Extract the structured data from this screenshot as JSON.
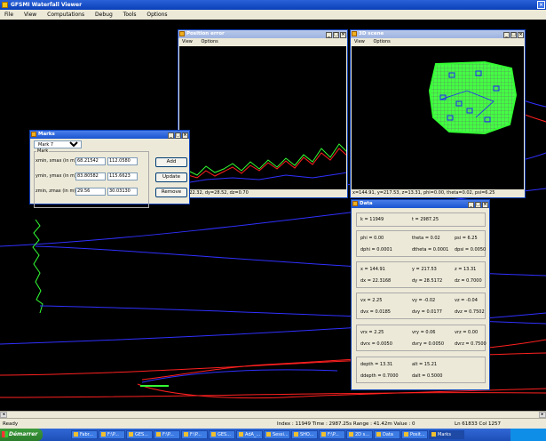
{
  "app": {
    "title": "GFSMI Waterfall Viewer"
  },
  "menu": [
    "File",
    "View",
    "Computations",
    "Debug",
    "Tools",
    "Options"
  ],
  "position_window": {
    "title": "Position error",
    "menu": [
      "View",
      "Options"
    ],
    "status": "dx=22.32, dy=28.52, dz=0.70"
  },
  "scene_window": {
    "title": "3D scene",
    "menu": [
      "View",
      "Options"
    ],
    "status": "x=144.91, y=217.53, z=13.31, phi=0.00, theta=0.02, psi=6.25"
  },
  "marks_window": {
    "title": "Marks",
    "selected": "Mark 7",
    "group_label": "Mark",
    "rows": [
      {
        "label": "xmin, xmax (in m)",
        "min": "68.21542",
        "max": "112.0580"
      },
      {
        "label": "ymin, ymax (in m)",
        "min": "83.80582",
        "max": "115.6623"
      },
      {
        "label": "zmin, zmax (in m)",
        "min": "29.56",
        "max": "30.03130"
      }
    ],
    "buttons": {
      "add": "Add",
      "update": "Update",
      "remove": "Remove"
    }
  },
  "data_window": {
    "title": "Data",
    "boxes": [
      [
        [
          "k = 11949",
          "t = 2987.25",
          ""
        ]
      ],
      [
        [
          "phi = 0.00",
          "theta = 0.02",
          "psi = 6.25"
        ],
        [
          "dphi = 0.0001",
          "dtheta = 0.0001",
          "dpsi = 0.0050"
        ]
      ],
      [
        [
          "x = 144.91",
          "y = 217.53",
          "z = 13.31"
        ],
        [
          "dx = 22.3168",
          "dy = 28.5172",
          "dz = 0.7000"
        ]
      ],
      [
        [
          "vx = 2.25",
          "vy = -0.02",
          "vz = -0.04"
        ],
        [
          "dvx = 0.0185",
          "dvy = 0.0177",
          "dvz = 0.7502"
        ]
      ],
      [
        [
          "vrx = 2.25",
          "vry = 0.06",
          "vrz = 0.00"
        ],
        [
          "dvrx = 0.0050",
          "dvry = 0.0050",
          "dvrz = 0.7500"
        ]
      ],
      [
        [
          "depth = 13.31",
          "alt = 15.21",
          ""
        ],
        [
          "ddepth = 0.7000",
          "dalt = 0.5000",
          ""
        ]
      ]
    ]
  },
  "statusbar": {
    "left": "Ready",
    "center": "Index : 11949  Time : 2987.25s  Range : 41.42m  Value : 0",
    "right": "Ln 61833  Col 1257"
  },
  "taskbar": {
    "start": "Démarrer",
    "tasks": [
      "Fabr...",
      "F:\\P...",
      "GES...",
      "F:\\P...",
      "F:\\P...",
      "GES...",
      "AdA_...",
      "Sessi...",
      "SHO...",
      "F:\\P...",
      "2D s...",
      "Data",
      "Posit...",
      "Marks"
    ]
  },
  "colors": {
    "accent": "#1a55d0",
    "grid_green": "#33ff33",
    "track_red": "#ff2020",
    "track_blue": "#3030ff"
  }
}
